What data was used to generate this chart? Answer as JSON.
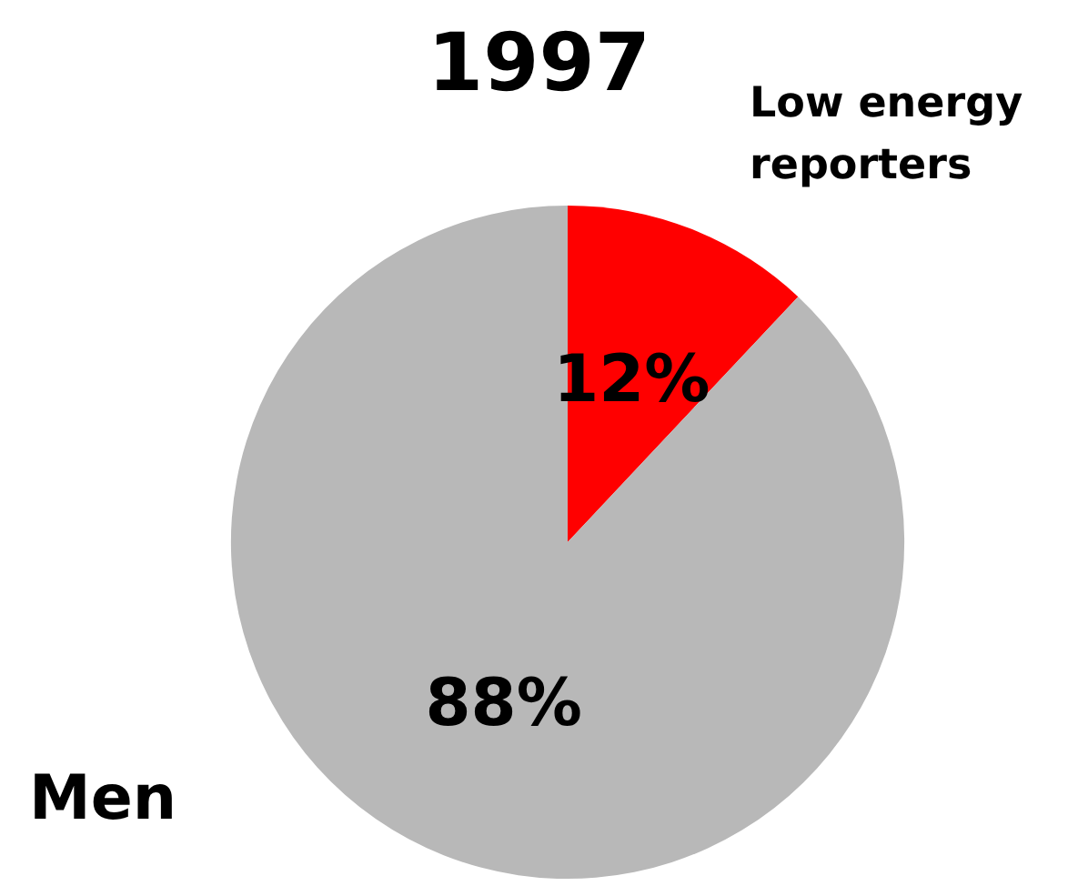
{
  "chart_data": {
    "type": "pie",
    "title": "1997",
    "categories": [
      "Low energy reporters",
      null
    ],
    "values": [
      12,
      88
    ],
    "colors": [
      "#ff0000",
      "#b8b8b8"
    ],
    "value_labels": [
      "12%",
      "88%"
    ],
    "annotations": [
      "Men"
    ]
  }
}
